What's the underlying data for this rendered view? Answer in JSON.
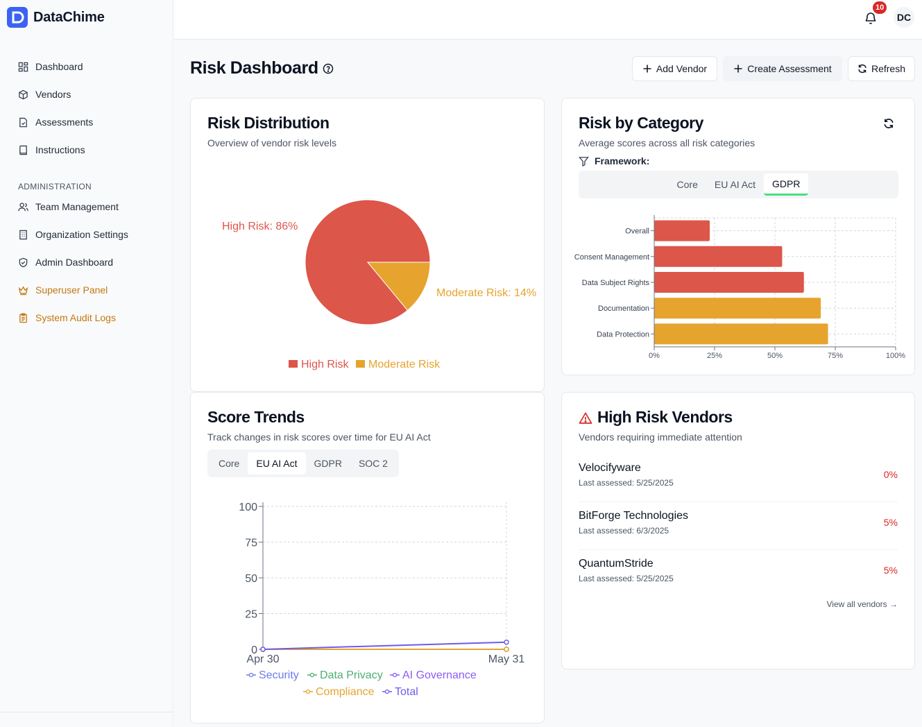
{
  "app": {
    "name": "DataChime"
  },
  "nav": {
    "items": [
      {
        "label": "Dashboard",
        "icon": "dashboard-icon"
      },
      {
        "label": "Vendors",
        "icon": "package-icon"
      },
      {
        "label": "Assessments",
        "icon": "file-check-icon"
      },
      {
        "label": "Instructions",
        "icon": "book-icon"
      }
    ],
    "admin_header": "ADMINISTRATION",
    "admin_items": [
      {
        "label": "Team Management",
        "icon": "users-icon"
      },
      {
        "label": "Organization Settings",
        "icon": "building-icon"
      },
      {
        "label": "Admin Dashboard",
        "icon": "shield-icon"
      },
      {
        "label": "Superuser Panel",
        "icon": "crown-icon"
      },
      {
        "label": "System Audit Logs",
        "icon": "clipboard-icon"
      }
    ]
  },
  "header": {
    "notifications": "10",
    "avatar": "DC"
  },
  "page": {
    "title": "Risk Dashboard",
    "buttons": {
      "add_vendor": "Add Vendor",
      "create_assessment": "Create Assessment",
      "refresh": "Refresh"
    }
  },
  "risk_distribution": {
    "title": "Risk Distribution",
    "subtitle": "Overview of vendor risk levels",
    "high_label": "High Risk: 86%",
    "moderate_label": "Moderate Risk: 14%"
  },
  "risk_category": {
    "title": "Risk by Category",
    "subtitle": "Average scores across all risk categories",
    "framework_label": "Framework:",
    "tabs": [
      "Core",
      "EU AI Act",
      "GDPR"
    ],
    "active_tab": "GDPR"
  },
  "score_trends": {
    "title": "Score Trends",
    "subtitle": "Track changes in risk scores over time for EU AI Act",
    "tabs": [
      "Core",
      "EU AI Act",
      "GDPR",
      "SOC 2"
    ],
    "active_tab": "EU AI Act"
  },
  "high_risk_vendors": {
    "title": "High Risk Vendors",
    "subtitle": "Vendors requiring immediate attention",
    "vendors": [
      {
        "name": "Velocifyware",
        "date": "Last assessed: 5/25/2025",
        "score": "0%"
      },
      {
        "name": "BitForge Technologies",
        "date": "Last assessed: 6/3/2025",
        "score": "5%"
      },
      {
        "name": "QuantumStride",
        "date": "Last assessed: 5/25/2025",
        "score": "5%"
      }
    ],
    "view_all": "View all vendors →"
  },
  "colors": {
    "high": "#dc564a",
    "moderate": "#e6a42e",
    "accent": "#3b63f3",
    "security": "#6b7cf0",
    "privacy": "#4caf72",
    "ai": "#8b5cf6",
    "compliance": "#e6a42e",
    "total": "#6d5ce8"
  },
  "chart_data": [
    {
      "type": "pie",
      "title": "Risk Distribution",
      "categories": [
        "High Risk",
        "Moderate Risk"
      ],
      "values": [
        86,
        14
      ],
      "legend": "bottom"
    },
    {
      "type": "bar",
      "orientation": "horizontal",
      "title": "Risk by Category",
      "categories": [
        "Overall",
        "Consent Management",
        "Data Subject Rights",
        "Documentation",
        "Data Protection"
      ],
      "values": [
        23,
        53,
        62,
        69,
        72
      ],
      "xlim": [
        0,
        100
      ],
      "xticks": [
        "0%",
        "25%",
        "50%",
        "75%",
        "100%"
      ],
      "grid": true
    },
    {
      "type": "line",
      "title": "Score Trends",
      "x": [
        "Apr 30",
        "May 31"
      ],
      "ylim": [
        0,
        100
      ],
      "yticks": [
        0,
        25,
        50,
        75,
        100
      ],
      "grid": true,
      "legend": "bottom",
      "series": [
        {
          "name": "Security",
          "values": [
            0,
            0
          ]
        },
        {
          "name": "Data Privacy",
          "values": [
            0,
            0
          ]
        },
        {
          "name": "AI Governance",
          "values": [
            0,
            0
          ]
        },
        {
          "name": "Compliance",
          "values": [
            0,
            0
          ]
        },
        {
          "name": "Total",
          "values": [
            0,
            5
          ]
        }
      ]
    }
  ]
}
